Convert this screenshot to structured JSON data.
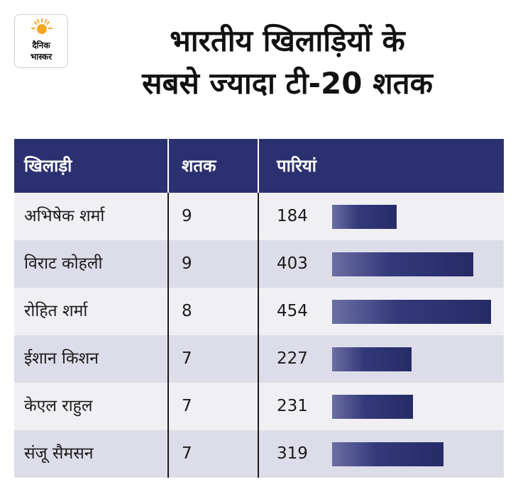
{
  "logo": {
    "line1": "दैनिक",
    "line2": "भास्कर"
  },
  "title": {
    "line1": "भारतीय खिलाड़ियों के",
    "line2": "सबसे ज्यादा टी-20 शतक"
  },
  "colors": {
    "header_bg": "#2b3170",
    "bar": "#2b3170",
    "row_light": "#f0f0f4",
    "row_dark": "#dddde9",
    "sun": "#f5a623"
  },
  "chart_data": {
    "type": "table",
    "title": "भारतीय खिलाड़ियों के सबसे ज्यादा टी-20 शतक",
    "headers": [
      "खिलाड़ी",
      "शतक",
      "पारियां"
    ],
    "rows": [
      {
        "player": "अभिषेक शर्मा",
        "centuries": 9,
        "innings": 184
      },
      {
        "player": "विराट कोहली",
        "centuries": 9,
        "innings": 403
      },
      {
        "player": "रोहित शर्मा",
        "centuries": 8,
        "innings": 454
      },
      {
        "player": "ईशान किशन",
        "centuries": 7,
        "innings": 227
      },
      {
        "player": "केएल राहुल",
        "centuries": 7,
        "innings": 231
      },
      {
        "player": "संजू सैमसन",
        "centuries": 7,
        "innings": 319
      }
    ],
    "bar_series": "innings",
    "bar_max": 454
  }
}
